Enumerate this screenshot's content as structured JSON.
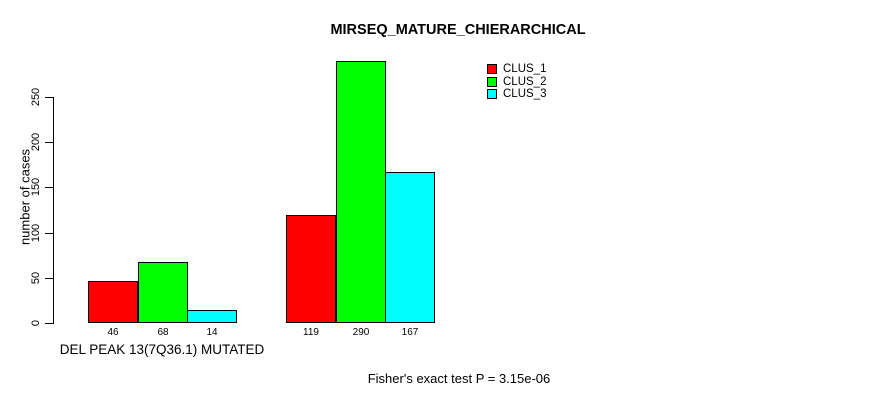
{
  "title": "MIRSEQ_MATURE_CHIERARCHICAL",
  "chart_data": {
    "type": "bar",
    "title": "MIRSEQ_MATURE_CHIERARCHICAL",
    "categories": [
      "DEL PEAK 13(7Q36.1) MUTATED",
      ""
    ],
    "series": [
      {
        "name": "CLUS_1",
        "color": "#ff0000",
        "values": [
          46,
          119
        ]
      },
      {
        "name": "CLUS_2",
        "color": "#00ff00",
        "values": [
          68,
          290
        ]
      },
      {
        "name": "CLUS_3",
        "color": "#00ffff",
        "values": [
          14,
          167
        ]
      }
    ],
    "xlabel": "",
    "ylabel": "number of cases",
    "yticks": [
      0,
      50,
      100,
      150,
      200,
      250
    ],
    "ylim": [
      0,
      290
    ],
    "bar_value_labels": [
      [
        46,
        68,
        14
      ],
      [
        119,
        290,
        167
      ]
    ],
    "legend": {
      "position": "top-right",
      "entries": [
        "CLUS_1",
        "CLUS_2",
        "CLUS_3"
      ]
    },
    "grid": false,
    "bar_border_color": "#000000",
    "background_color": "#ffffff"
  },
  "footer": {
    "caption": "Fisher's exact test P = 3.15e-06"
  }
}
